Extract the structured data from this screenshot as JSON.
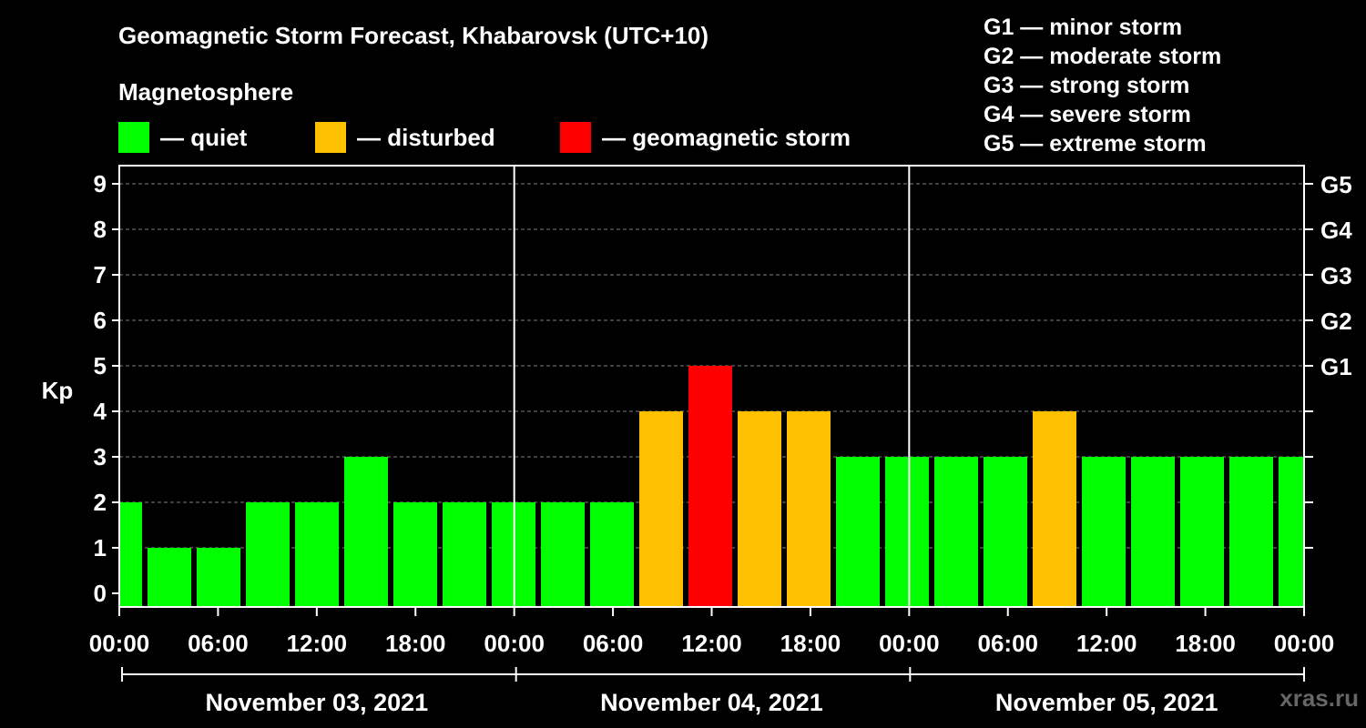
{
  "title": "Geomagnetic Storm Forecast, Khabarovsk (UTC+10)",
  "subtitle": "Magnetosphere",
  "legend": [
    {
      "label": "— quiet",
      "color": "#00ff00"
    },
    {
      "label": "— disturbed",
      "color": "#ffc000"
    },
    {
      "label": "— geomagnetic storm",
      "color": "#ff0000"
    }
  ],
  "storm_scale": [
    "G1 — minor storm",
    "G2 — moderate storm",
    "G3 — strong storm",
    "G4 — severe storm",
    "G5 — extreme storm"
  ],
  "watermark": "xras.ru",
  "colors": {
    "quiet": "#00ff00",
    "disturbed": "#ffc000",
    "storm": "#ff0000"
  },
  "chart_data": {
    "type": "bar",
    "ylabel": "Kp",
    "ylim": [
      0,
      9
    ],
    "y_ticks": [
      0,
      1,
      2,
      3,
      4,
      5,
      6,
      7,
      8,
      9
    ],
    "right_axis_labels": [
      {
        "kp": 5,
        "label": "G1"
      },
      {
        "kp": 6,
        "label": "G2"
      },
      {
        "kp": 7,
        "label": "G3"
      },
      {
        "kp": 8,
        "label": "G4"
      },
      {
        "kp": 9,
        "label": "G5"
      }
    ],
    "x_tick_labels": [
      "00:00",
      "06:00",
      "12:00",
      "18:00",
      "00:00",
      "06:00",
      "12:00",
      "18:00",
      "00:00",
      "06:00",
      "12:00",
      "18:00",
      "00:00"
    ],
    "dates": [
      "November 03, 2021",
      "November 04, 2021",
      "November 05, 2021"
    ],
    "bar_interval_hours": 3,
    "values": [
      2,
      1,
      1,
      2,
      2,
      3,
      2,
      2,
      2,
      2,
      2,
      4,
      5,
      4,
      4,
      3,
      3,
      3,
      3,
      4,
      3,
      3,
      3,
      3,
      3
    ],
    "categories": [
      "quiet",
      "quiet",
      "quiet",
      "quiet",
      "quiet",
      "quiet",
      "quiet",
      "quiet",
      "quiet",
      "quiet",
      "quiet",
      "disturbed",
      "storm",
      "disturbed",
      "disturbed",
      "quiet",
      "quiet",
      "quiet",
      "quiet",
      "disturbed",
      "quiet",
      "quiet",
      "quiet",
      "quiet",
      "quiet"
    ],
    "grid": true
  }
}
